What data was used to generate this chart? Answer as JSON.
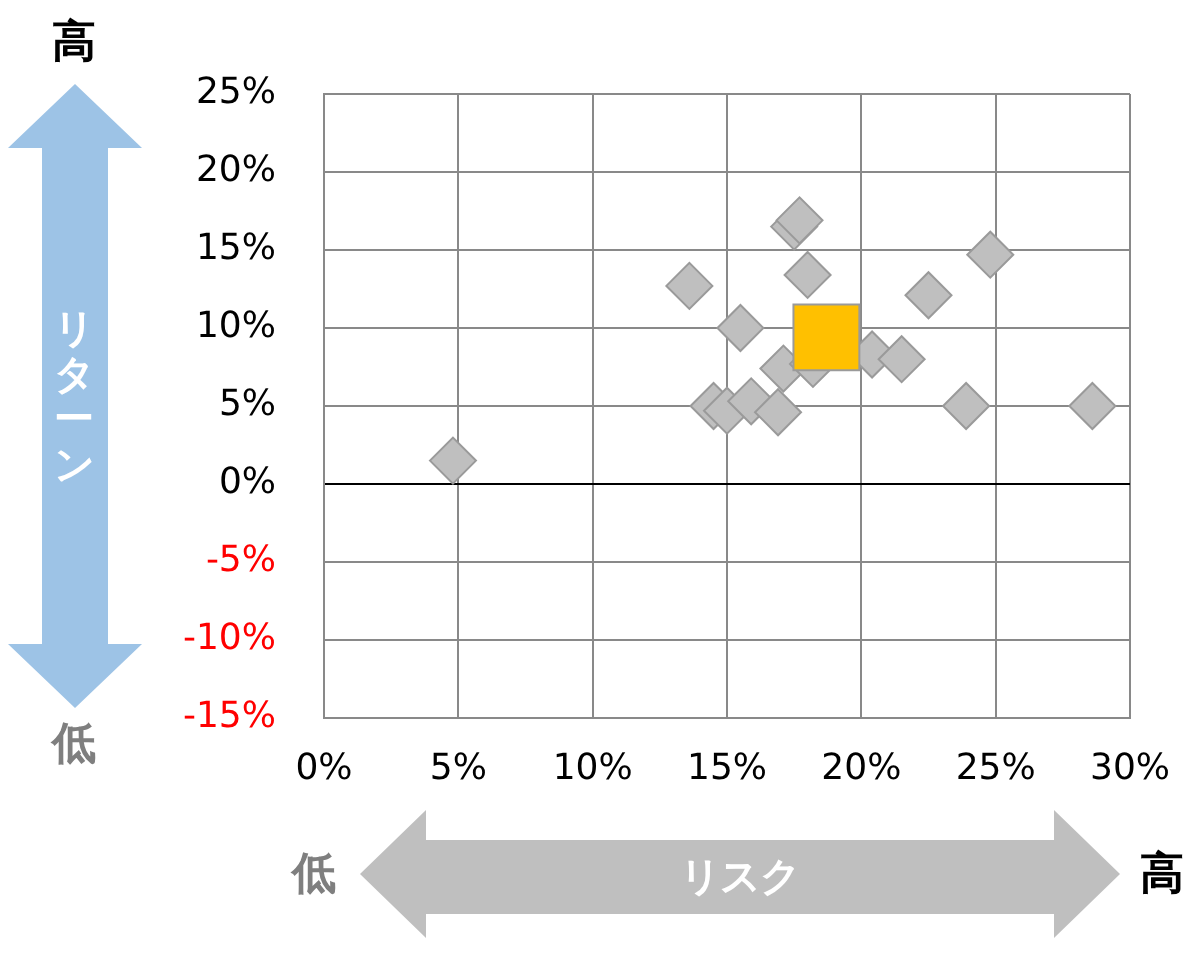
{
  "chart_data": {
    "type": "scatter",
    "xlabel": "リスク",
    "ylabel": "リターン",
    "annotations": [
      "高",
      "低",
      "低",
      "高"
    ],
    "series": [
      {
        "color": "#bfbfbf",
        "marker": "diamond",
        "x": [
          4.8,
          13.6,
          15.5,
          17.5,
          17.7,
          18.0,
          22.5,
          24.8,
          14.5,
          15.0,
          15.9,
          16.9,
          17.1,
          18.2,
          20.4,
          21.5,
          23.9,
          28.6
        ],
        "values": [
          1.5,
          12.7,
          10.0,
          16.5,
          16.9,
          13.4,
          12.1,
          14.7,
          5.0,
          4.7,
          5.3,
          4.6,
          7.4,
          7.7,
          8.3,
          8.0,
          5.0,
          5.0
        ]
      },
      {
        "color": "#ffc000",
        "marker": "square",
        "x": [
          18.7
        ],
        "values": [
          9.4
        ]
      }
    ],
    "xlim": [
      0,
      30
    ],
    "xticks": [
      {
        "value": 0,
        "label": "0%"
      },
      {
        "value": 5,
        "label": "5%"
      },
      {
        "value": 10,
        "label": "10%"
      },
      {
        "value": 15,
        "label": "15%"
      },
      {
        "value": 20,
        "label": "20%"
      },
      {
        "value": 25,
        "label": "25%"
      },
      {
        "value": 30,
        "label": "30%"
      }
    ],
    "ylim": [
      -15,
      25
    ],
    "yticks": [
      {
        "value": -15,
        "label": "-15%"
      },
      {
        "value": -10,
        "label": "-10%"
      },
      {
        "value": -5,
        "label": "-5%"
      },
      {
        "value": 0,
        "label": "0%"
      },
      {
        "value": 5,
        "label": "5%"
      },
      {
        "value": 10,
        "label": "10%"
      },
      {
        "value": 15,
        "label": "15%"
      },
      {
        "value": 20,
        "label": "20%"
      },
      {
        "value": 25,
        "label": "25%"
      }
    ],
    "grid": true,
    "legend": false
  }
}
